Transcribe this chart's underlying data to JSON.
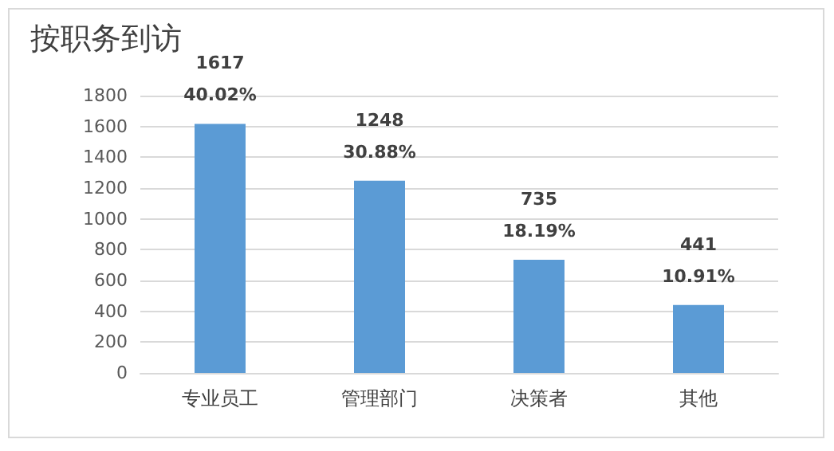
{
  "chart_data": {
    "type": "bar",
    "title": "按职务到访",
    "categories": [
      "专业员工",
      "管理部门",
      "决策者",
      "其他"
    ],
    "values": [
      1617,
      1248,
      735,
      441
    ],
    "color": "#5b9bd5",
    "value_labels": [
      "1617\n40.02%",
      "1248\n30.88%",
      "735\n18.19%",
      "441\n10.91%"
    ],
    "ylim": [
      0,
      1800
    ],
    "yticks": [
      0,
      200,
      400,
      600,
      800,
      1000,
      1200,
      1400,
      1600,
      1800
    ],
    "grid": "y"
  }
}
